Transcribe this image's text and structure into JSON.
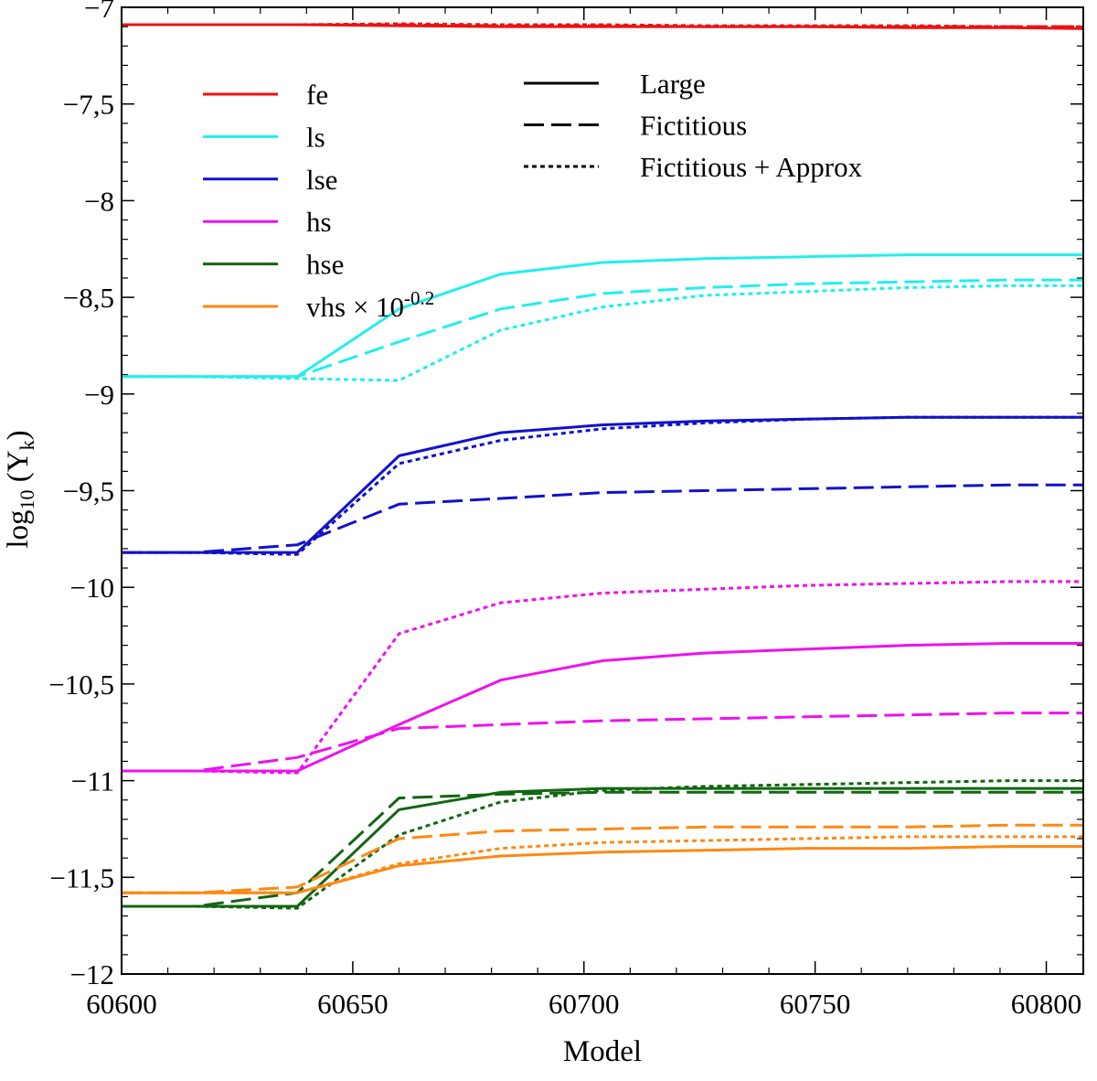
{
  "chart_data": {
    "type": "line",
    "xlabel": "Model",
    "ylabel": {
      "base": "log",
      "sub": "10",
      "mid": " (Y",
      "sub2": "k",
      "end": ")"
    },
    "xlim": [
      60600,
      60808
    ],
    "ylim": [
      -12,
      -7
    ],
    "xticks": [
      60600,
      60650,
      60700,
      60750,
      60800
    ],
    "xtick_labels": [
      "60600",
      "60650",
      "60700",
      "60750",
      "60800"
    ],
    "yticks": [
      -12,
      -11.5,
      -11,
      -10.5,
      -10,
      -9.5,
      -9,
      -8.5,
      -8,
      -7.5,
      -7
    ],
    "ytick_labels": [
      "−12",
      "−11,5",
      "−11",
      "−10,5",
      "−10",
      "−9,5",
      "−9",
      "−8,5",
      "−8",
      "−7,5",
      "−7"
    ],
    "x": [
      60600,
      60616,
      60638,
      60660,
      60682,
      60704,
      60726,
      60748,
      60770,
      60792,
      60808
    ],
    "species_legend": [
      {
        "key": "fe",
        "label": "fe",
        "color": "#ee1111"
      },
      {
        "key": "ls",
        "label": "ls",
        "color": "#22eeee"
      },
      {
        "key": "lse",
        "label": "lse",
        "color": "#1111cc"
      },
      {
        "key": "hs",
        "label": "hs",
        "color": "#ee11ee"
      },
      {
        "key": "hse",
        "label": "hse",
        "color": "#116611"
      },
      {
        "key": "vhs",
        "label": "vhs × 10",
        "sup": "-0.2",
        "color": "#ff8811"
      }
    ],
    "style_legend": [
      {
        "style": "solid",
        "label": "Large"
      },
      {
        "style": "dashed",
        "label": "Fictitious"
      },
      {
        "style": "dotted",
        "label": "Fictitious + Approx"
      }
    ],
    "series": [
      {
        "name": "fe Large",
        "species": "fe",
        "style": "solid",
        "values": [
          -7.09,
          -7.09,
          -7.09,
          -7.095,
          -7.1,
          -7.1,
          -7.1,
          -7.1,
          -7.105,
          -7.105,
          -7.11
        ]
      },
      {
        "name": "fe Fictitious",
        "species": "fe",
        "style": "dashed",
        "values": [
          -7.09,
          -7.09,
          -7.09,
          -7.09,
          -7.095,
          -7.095,
          -7.1,
          -7.1,
          -7.1,
          -7.1,
          -7.1
        ]
      },
      {
        "name": "fe Fictitious + Approx",
        "species": "fe",
        "style": "dotted",
        "values": [
          -7.09,
          -7.09,
          -7.09,
          -7.085,
          -7.09,
          -7.09,
          -7.095,
          -7.095,
          -7.095,
          -7.1,
          -7.1
        ]
      },
      {
        "name": "ls Large",
        "species": "ls",
        "style": "solid",
        "values": [
          -8.91,
          -8.91,
          -8.91,
          -8.56,
          -8.38,
          -8.32,
          -8.3,
          -8.29,
          -8.28,
          -8.28,
          -8.28
        ]
      },
      {
        "name": "ls Fictitious",
        "species": "ls",
        "style": "dashed",
        "values": [
          -8.91,
          -8.91,
          -8.91,
          -8.73,
          -8.56,
          -8.48,
          -8.45,
          -8.43,
          -8.42,
          -8.41,
          -8.41
        ]
      },
      {
        "name": "ls Fictitious + Approx",
        "species": "ls",
        "style": "dotted",
        "values": [
          -8.91,
          -8.91,
          -8.92,
          -8.93,
          -8.67,
          -8.55,
          -8.49,
          -8.47,
          -8.45,
          -8.44,
          -8.44
        ]
      },
      {
        "name": "lse Large",
        "species": "lse",
        "style": "solid",
        "values": [
          -9.82,
          -9.82,
          -9.82,
          -9.32,
          -9.2,
          -9.16,
          -9.14,
          -9.13,
          -9.12,
          -9.12,
          -9.12
        ]
      },
      {
        "name": "lse Fictitious",
        "species": "lse",
        "style": "dashed",
        "values": [
          -9.82,
          -9.82,
          -9.78,
          -9.57,
          -9.54,
          -9.51,
          -9.5,
          -9.49,
          -9.48,
          -9.47,
          -9.47
        ]
      },
      {
        "name": "lse Fictitious + Approx",
        "species": "lse",
        "style": "dotted",
        "values": [
          -9.82,
          -9.82,
          -9.83,
          -9.36,
          -9.24,
          -9.18,
          -9.15,
          -9.13,
          -9.12,
          -9.12,
          -9.12
        ]
      },
      {
        "name": "hs Large",
        "species": "hs",
        "style": "solid",
        "values": [
          -10.95,
          -10.95,
          -10.95,
          -10.71,
          -10.48,
          -10.38,
          -10.34,
          -10.32,
          -10.3,
          -10.29,
          -10.29
        ]
      },
      {
        "name": "hs Fictitious",
        "species": "hs",
        "style": "dashed",
        "values": [
          -10.95,
          -10.95,
          -10.88,
          -10.73,
          -10.71,
          -10.69,
          -10.68,
          -10.67,
          -10.66,
          -10.65,
          -10.65
        ]
      },
      {
        "name": "hs Fictitious + Approx",
        "species": "hs",
        "style": "dotted",
        "values": [
          -10.95,
          -10.95,
          -10.96,
          -10.24,
          -10.08,
          -10.03,
          -10.01,
          -9.99,
          -9.98,
          -9.97,
          -9.97
        ]
      },
      {
        "name": "hse Large",
        "species": "hse",
        "style": "solid",
        "values": [
          -11.65,
          -11.65,
          -11.65,
          -11.15,
          -11.06,
          -11.04,
          -11.04,
          -11.04,
          -11.04,
          -11.04,
          -11.04
        ]
      },
      {
        "name": "hse Fictitious",
        "species": "hse",
        "style": "dashed",
        "values": [
          -11.65,
          -11.65,
          -11.58,
          -11.09,
          -11.07,
          -11.06,
          -11.06,
          -11.06,
          -11.06,
          -11.06,
          -11.06
        ]
      },
      {
        "name": "hse Fictitious + Approx",
        "species": "hse",
        "style": "dotted",
        "values": [
          -11.65,
          -11.65,
          -11.66,
          -11.28,
          -11.11,
          -11.05,
          -11.03,
          -11.02,
          -11.01,
          -11.0,
          -11.0
        ]
      },
      {
        "name": "vhs Large",
        "species": "vhs",
        "style": "solid",
        "values": [
          -11.58,
          -11.58,
          -11.58,
          -11.44,
          -11.39,
          -11.37,
          -11.36,
          -11.35,
          -11.35,
          -11.34,
          -11.34
        ]
      },
      {
        "name": "vhs Fictitious",
        "species": "vhs",
        "style": "dashed",
        "values": [
          -11.58,
          -11.58,
          -11.55,
          -11.3,
          -11.26,
          -11.25,
          -11.24,
          -11.24,
          -11.24,
          -11.23,
          -11.23
        ]
      },
      {
        "name": "vhs Fictitious + Approx",
        "species": "vhs",
        "style": "dotted",
        "values": [
          -11.58,
          -11.58,
          -11.58,
          -11.43,
          -11.35,
          -11.32,
          -11.31,
          -11.3,
          -11.29,
          -11.29,
          -11.29
        ]
      }
    ]
  }
}
